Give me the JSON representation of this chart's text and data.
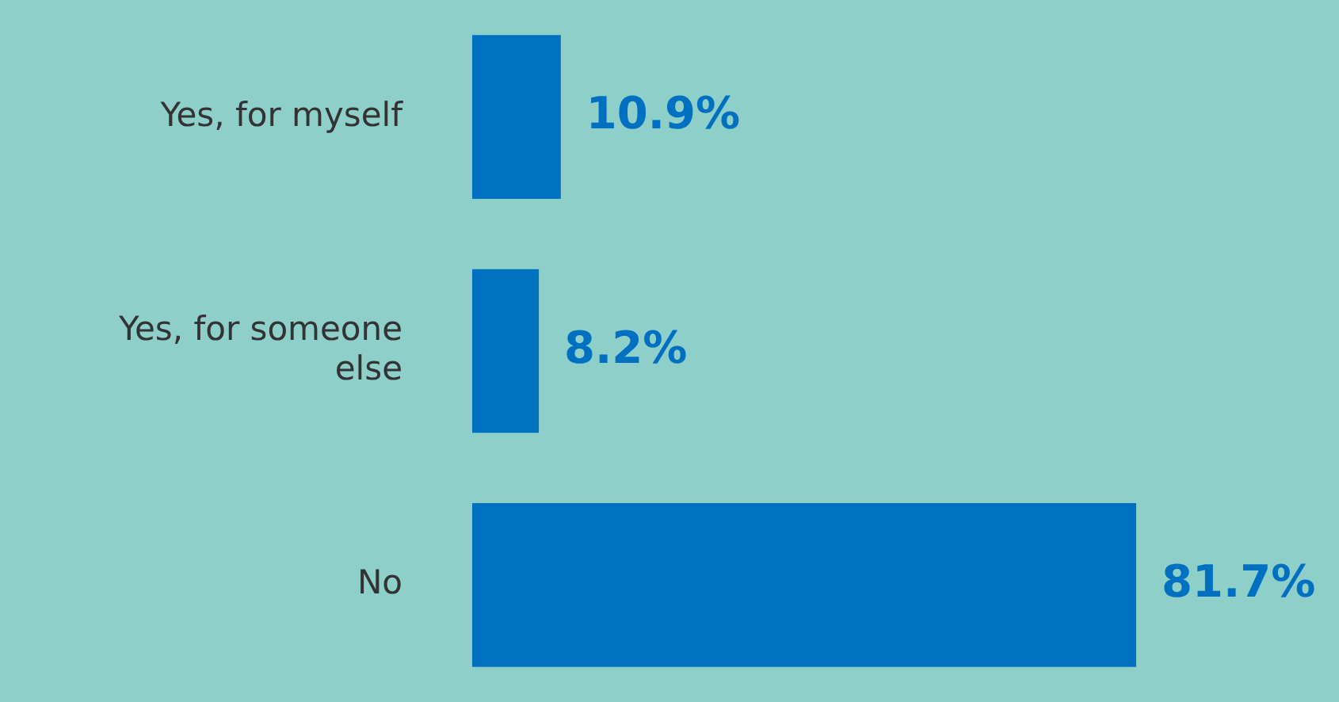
{
  "chart_data": {
    "type": "bar",
    "orientation": "horizontal",
    "categories": [
      "Yes, for myself",
      "Yes, for someone else",
      "No"
    ],
    "values": [
      10.9,
      8.2,
      81.7
    ],
    "color": "#0070c0",
    "value_labels": [
      "10.9%",
      "8.2%",
      "81.7%"
    ]
  }
}
